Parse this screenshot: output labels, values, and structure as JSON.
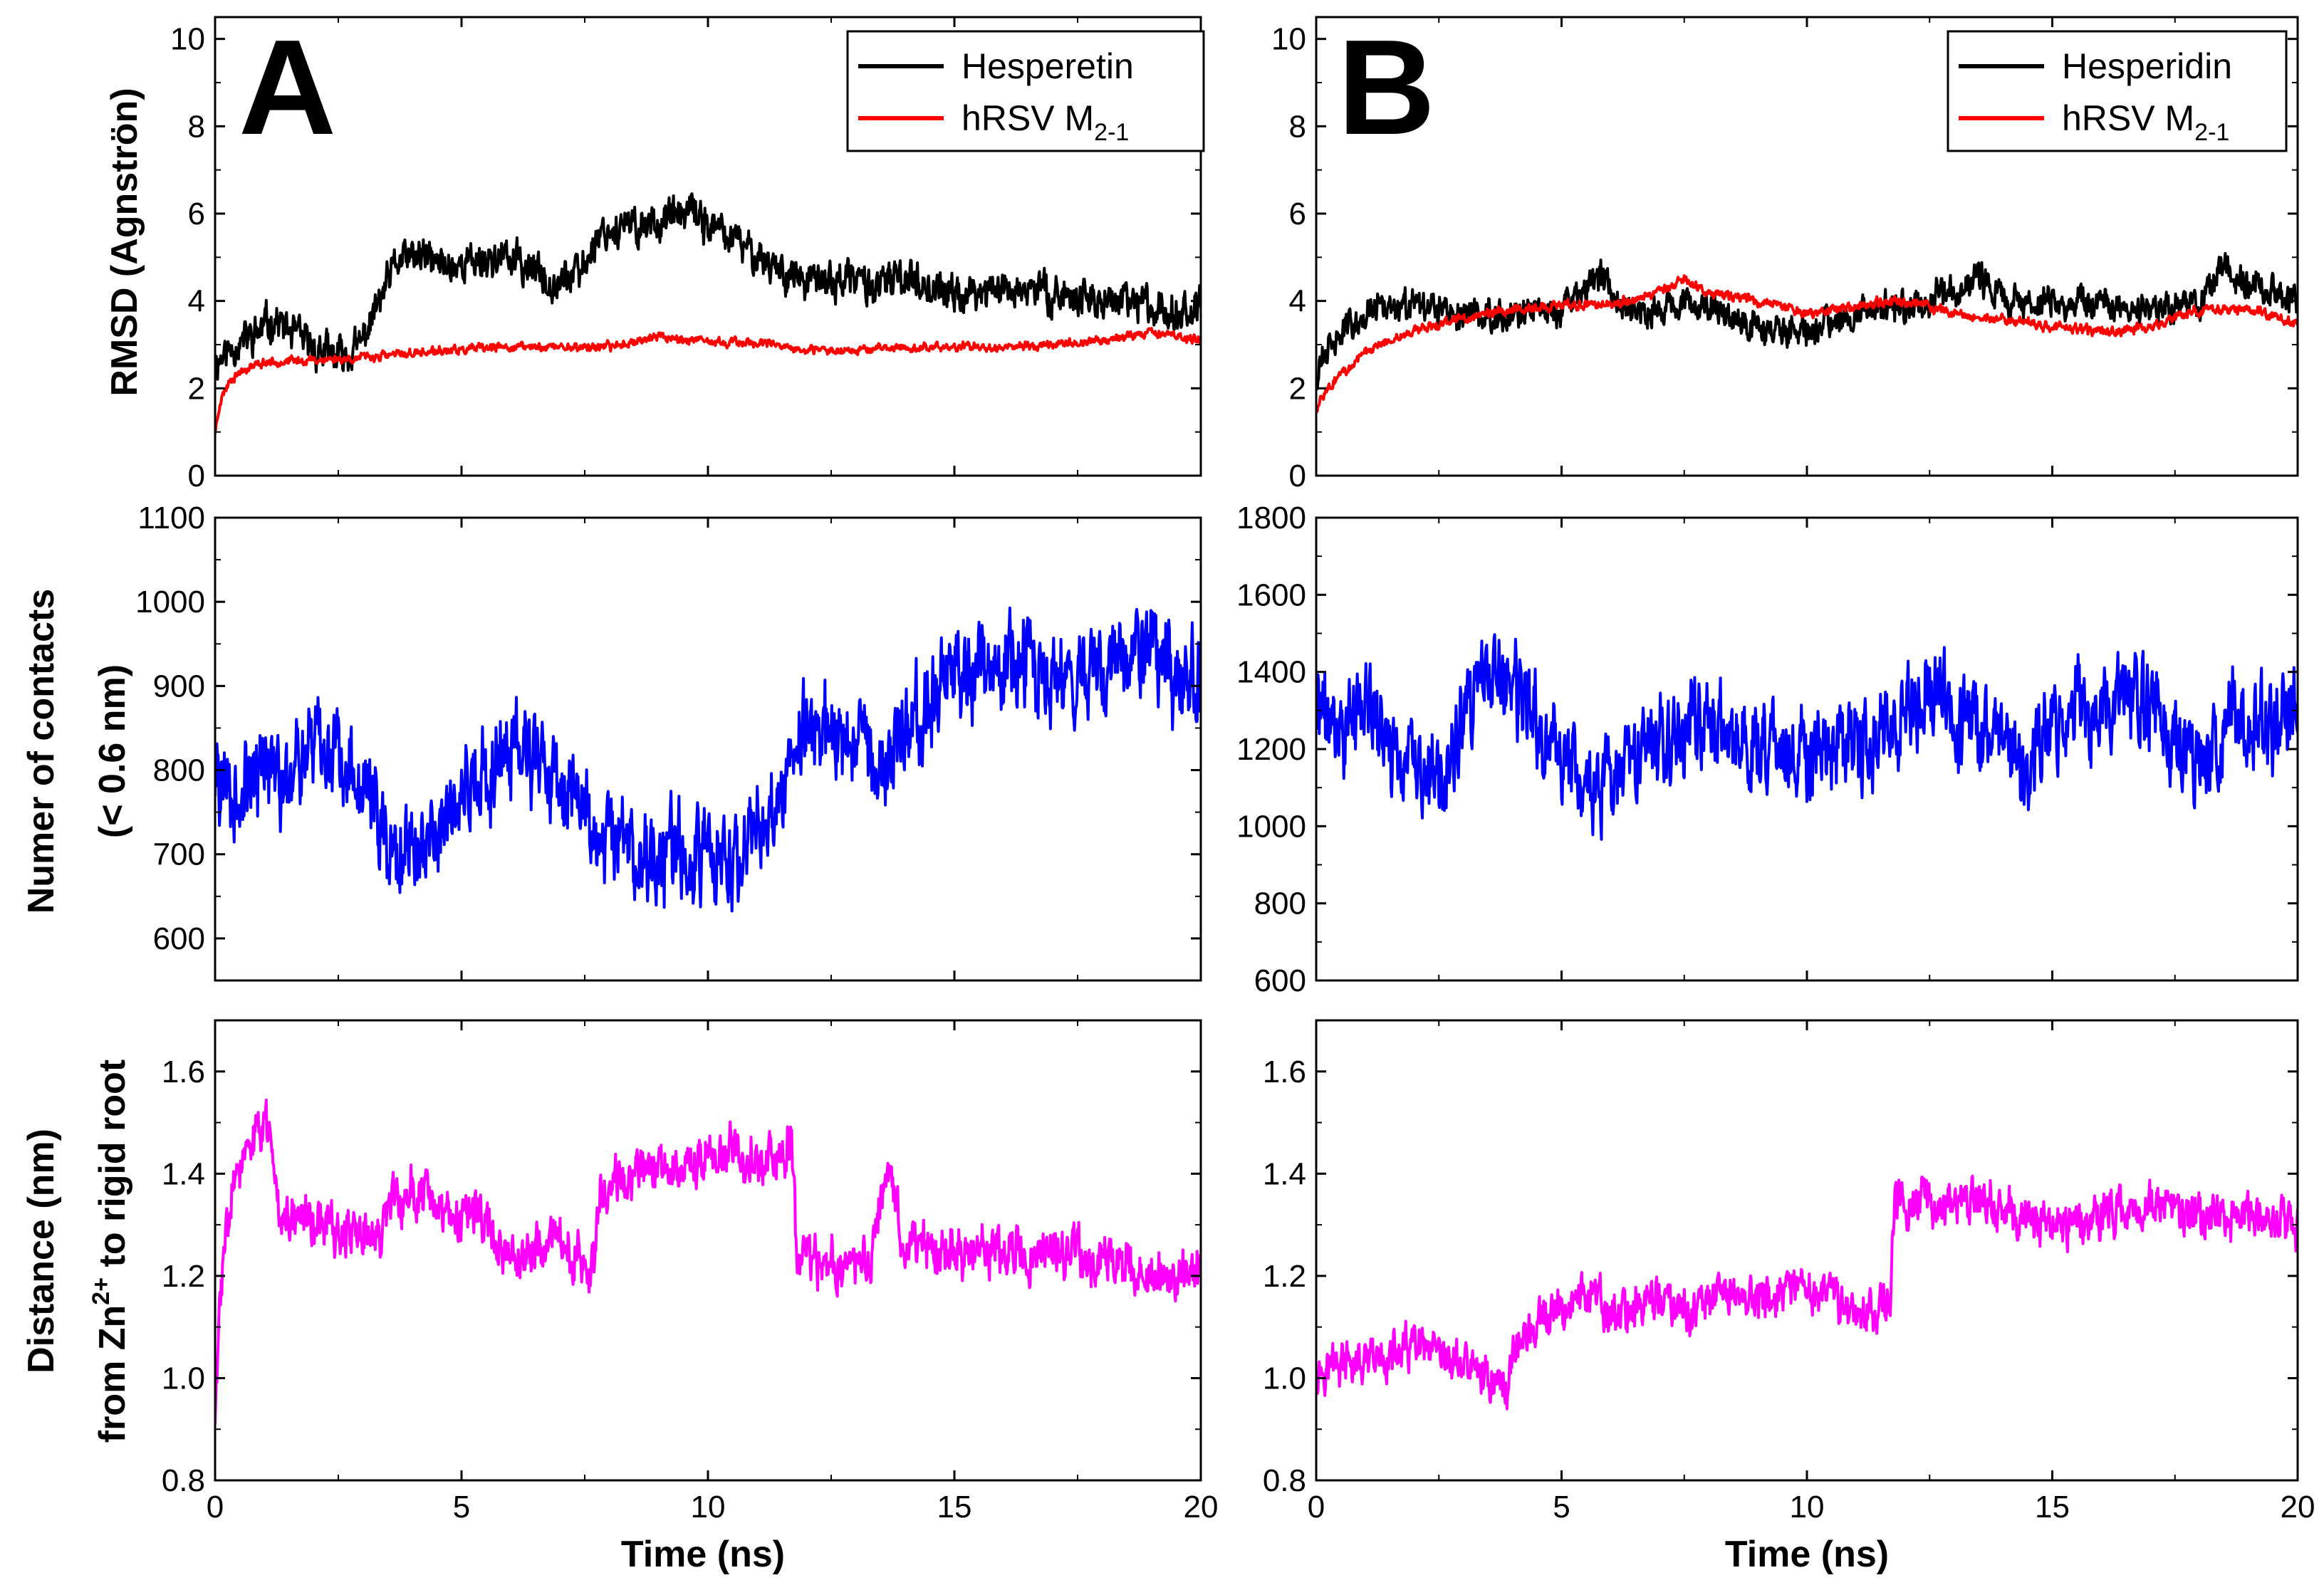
{
  "panel_labels": {
    "A": "A",
    "B": "B"
  },
  "ylabels": {
    "rmsd": "RMSD (Agnströn)",
    "contacts_line1": "Numer of contacts",
    "contacts_line2": "(< 0.6 nm)",
    "distance_line1": "Distance (nm)",
    "distance_line2_pre": "from Zn",
    "distance_line2_sup": "2+",
    "distance_line2_post": " to rigid root"
  },
  "xlabel": "Time (ns)",
  "legend": {
    "A": {
      "ligand": "Hesperetin",
      "protein_base": "hRSV M",
      "protein_sub": "2-1"
    },
    "B": {
      "ligand": "Hesperidin",
      "protein_base": "hRSV M",
      "protein_sub": "2-1"
    }
  },
  "colors": {
    "ligand": "#000000",
    "protein": "#ff0000",
    "contacts": "#0000ff",
    "distance": "#ff00ff"
  },
  "chart_data": [
    {
      "id": "A-rmsd",
      "type": "line",
      "panel": "A",
      "row": 0,
      "title": "",
      "xlabel": "",
      "ylabel": "RMSD (Agnströn)",
      "xlim": [
        0,
        20
      ],
      "ylim": [
        0,
        10.5
      ],
      "xticks": [
        0,
        5,
        10,
        15,
        20
      ],
      "yticks": [
        0,
        2,
        4,
        6,
        8,
        10
      ],
      "legend_position": "top-right",
      "series": [
        {
          "name": "Hesperetin",
          "color": "#000000",
          "noise": 0.35,
          "seed": 11,
          "x": [
            0,
            0.4,
            0.8,
            1.2,
            1.5,
            2,
            2.5,
            2.9,
            3.3,
            3.7,
            4.2,
            4.7,
            5.2,
            5.8,
            6.3,
            6.8,
            7.4,
            7.8,
            8.5,
            9.2,
            9.7,
            10.2,
            10.8,
            11.4,
            12,
            13,
            13.5,
            14,
            15,
            16,
            17,
            18,
            19,
            20
          ],
          "y": [
            2.6,
            3.0,
            3.2,
            3.6,
            3.3,
            2.9,
            2.7,
            2.9,
            3.9,
            4.9,
            5.0,
            4.8,
            4.9,
            5.0,
            4.8,
            4.5,
            4.6,
            5.6,
            5.7,
            5.9,
            6.0,
            5.6,
            5.2,
            4.8,
            4.4,
            4.5,
            4.3,
            4.6,
            4.1,
            4.3,
            4.2,
            4.0,
            3.9,
            3.8
          ]
        },
        {
          "name": "hRSV M2-1",
          "color": "#ff0000",
          "noise": 0.08,
          "seed": 23,
          "x": [
            0,
            0.1,
            0.3,
            0.6,
            1,
            2,
            3,
            4,
            6,
            8,
            9,
            10,
            11,
            12,
            13,
            15,
            16,
            17,
            18,
            19,
            20
          ],
          "y": [
            1.0,
            1.7,
            2.2,
            2.45,
            2.6,
            2.65,
            2.7,
            2.8,
            2.95,
            2.95,
            3.2,
            3.05,
            3.05,
            2.85,
            2.9,
            2.95,
            2.95,
            3.0,
            3.1,
            3.3,
            3.1
          ]
        }
      ]
    },
    {
      "id": "B-rmsd",
      "type": "line",
      "panel": "B",
      "row": 0,
      "title": "",
      "xlabel": "",
      "ylabel": "",
      "xlim": [
        0,
        20
      ],
      "ylim": [
        0,
        10.5
      ],
      "xticks": [
        0,
        5,
        10,
        15,
        20
      ],
      "yticks": [
        0,
        2,
        4,
        6,
        8,
        10
      ],
      "legend_position": "top-right",
      "series": [
        {
          "name": "Hesperidin",
          "color": "#000000",
          "noise": 0.3,
          "seed": 31,
          "x": [
            0,
            0.3,
            0.8,
            1.5,
            2,
            3,
            4,
            5,
            5.8,
            6.3,
            7,
            8,
            9,
            10,
            11,
            12,
            13,
            13.5,
            14,
            15,
            16,
            17,
            18,
            18.5,
            19,
            20
          ],
          "y": [
            2.3,
            3.0,
            3.6,
            3.9,
            3.8,
            3.7,
            3.7,
            3.8,
            4.6,
            3.9,
            3.8,
            3.9,
            3.4,
            3.3,
            3.8,
            3.8,
            4.2,
            4.6,
            4.0,
            4.0,
            3.9,
            3.8,
            4.0,
            4.7,
            4.4,
            4.0
          ]
        },
        {
          "name": "hRSV M2-1",
          "color": "#ff0000",
          "noise": 0.09,
          "seed": 43,
          "x": [
            0,
            0.1,
            0.3,
            0.6,
            1,
            1.5,
            2,
            3,
            4,
            5,
            6,
            7,
            7.5,
            8,
            9,
            10,
            11,
            12,
            13,
            14,
            15,
            16,
            17,
            18,
            19,
            20
          ],
          "y": [
            1.5,
            1.8,
            2.1,
            2.4,
            2.8,
            3.1,
            3.3,
            3.6,
            3.8,
            3.9,
            3.9,
            4.2,
            4.5,
            4.2,
            4.0,
            3.7,
            3.9,
            4.0,
            3.7,
            3.6,
            3.4,
            3.3,
            3.4,
            3.8,
            3.8,
            3.5
          ]
        }
      ]
    },
    {
      "id": "A-contacts",
      "type": "line",
      "panel": "A",
      "row": 1,
      "title": "",
      "xlabel": "",
      "ylabel": "Numer of contacts (< 0.6 nm)",
      "xlim": [
        0,
        20
      ],
      "ylim": [
        550,
        1100
      ],
      "xticks": [
        0,
        5,
        10,
        15,
        20
      ],
      "yticks": [
        600,
        700,
        800,
        900,
        1000,
        1100
      ],
      "series": [
        {
          "name": "contacts",
          "color": "#0000ff",
          "noise": 45,
          "seed": 57,
          "x": [
            0,
            0.5,
            1,
            1.5,
            2,
            2.5,
            3,
            3.5,
            4,
            4.5,
            5,
            5.5,
            6,
            6.5,
            7,
            7.5,
            8,
            8.5,
            9,
            9.5,
            10,
            10.5,
            11,
            11.5,
            11.8,
            12.5,
            13,
            13.5,
            14,
            14.5,
            15,
            15.5,
            16,
            17,
            18,
            19,
            19.5,
            20
          ],
          "y": [
            790,
            770,
            800,
            780,
            820,
            830,
            780,
            720,
            700,
            740,
            770,
            800,
            840,
            810,
            790,
            760,
            720,
            700,
            690,
            710,
            700,
            680,
            720,
            760,
            840,
            840,
            830,
            810,
            850,
            880,
            920,
            920,
            930,
            920,
            910,
            940,
            920,
            900
          ]
        }
      ]
    },
    {
      "id": "B-contacts",
      "type": "line",
      "panel": "B",
      "row": 1,
      "title": "",
      "xlabel": "",
      "ylabel": "",
      "xlim": [
        0,
        20
      ],
      "ylim": [
        600,
        1800
      ],
      "xticks": [
        0,
        5,
        10,
        15,
        20
      ],
      "yticks": [
        600,
        800,
        1000,
        1200,
        1400,
        1600,
        1800
      ],
      "series": [
        {
          "name": "contacts",
          "color": "#0000ff",
          "noise": 95,
          "seed": 71,
          "x": [
            0,
            0.5,
            1,
            1.5,
            2,
            2.5,
            3,
            3.5,
            4,
            4.5,
            5,
            5.5,
            6,
            6.5,
            7,
            7.5,
            8,
            8.5,
            9,
            9.5,
            10,
            10.5,
            11,
            11.5,
            12,
            12.5,
            13,
            13.5,
            14,
            14.5,
            15,
            15.5,
            16,
            16.5,
            17,
            17.5,
            18,
            18.5,
            19,
            19.5,
            20
          ],
          "y": [
            1300,
            1250,
            1320,
            1200,
            1150,
            1100,
            1250,
            1400,
            1350,
            1250,
            1200,
            1100,
            1100,
            1150,
            1250,
            1250,
            1300,
            1200,
            1250,
            1200,
            1150,
            1200,
            1200,
            1200,
            1300,
            1350,
            1300,
            1250,
            1200,
            1150,
            1250,
            1300,
            1300,
            1350,
            1300,
            1250,
            1150,
            1250,
            1300,
            1250,
            1300
          ]
        }
      ]
    },
    {
      "id": "A-distance",
      "type": "line",
      "panel": "A",
      "row": 2,
      "title": "",
      "xlabel": "Time (ns)",
      "ylabel": "Distance (nm) from Zn2+ to rigid root",
      "xlim": [
        0,
        20
      ],
      "ylim": [
        0.8,
        1.7
      ],
      "xticks": [
        0,
        5,
        10,
        15,
        20
      ],
      "yticks": [
        0.8,
        1.0,
        1.2,
        1.4,
        1.6
      ],
      "series": [
        {
          "name": "distance",
          "color": "#ff00ff",
          "noise": 0.04,
          "seed": 83,
          "x": [
            0,
            0.1,
            0.3,
            0.6,
            0.9,
            1.1,
            1.3,
            1.8,
            2.3,
            2.8,
            3.3,
            3.8,
            4.3,
            4.8,
            5.3,
            5.8,
            6.3,
            6.8,
            7.3,
            7.7,
            7.8,
            8.5,
            9.5,
            10.5,
            11,
            11.5,
            11.7,
            11.8,
            12.3,
            12.8,
            13.3,
            13.6,
            14,
            14.5,
            15,
            16,
            17,
            18,
            19,
            20
          ],
          "y": [
            0.92,
            1.15,
            1.38,
            1.42,
            1.48,
            1.5,
            1.33,
            1.32,
            1.3,
            1.27,
            1.29,
            1.35,
            1.38,
            1.28,
            1.33,
            1.25,
            1.24,
            1.26,
            1.25,
            1.22,
            1.38,
            1.4,
            1.43,
            1.44,
            1.42,
            1.43,
            1.48,
            1.24,
            1.22,
            1.23,
            1.22,
            1.42,
            1.26,
            1.25,
            1.26,
            1.25,
            1.24,
            1.23,
            1.2,
            1.21
          ]
        }
      ]
    },
    {
      "id": "B-distance",
      "type": "line",
      "panel": "B",
      "row": 2,
      "title": "",
      "xlabel": "Time (ns)",
      "ylabel": "",
      "xlim": [
        0,
        20
      ],
      "ylim": [
        0.8,
        1.7
      ],
      "xticks": [
        0,
        5,
        10,
        15,
        20
      ],
      "yticks": [
        0.8,
        1.0,
        1.2,
        1.4,
        1.6
      ],
      "series": [
        {
          "name": "distance",
          "color": "#ff00ff",
          "noise": 0.035,
          "seed": 97,
          "x": [
            0,
            0.5,
            1,
            1.5,
            2,
            2.5,
            3,
            3.5,
            3.9,
            4,
            4.5,
            5,
            5.5,
            6,
            6.5,
            7,
            7.5,
            8,
            8.5,
            9,
            9.5,
            10,
            10.5,
            11,
            11.5,
            11.7,
            11.8,
            12.5,
            13,
            13.5,
            14,
            15,
            16,
            17,
            18,
            19,
            20
          ],
          "y": [
            1.02,
            1.03,
            1.02,
            1.04,
            1.06,
            1.03,
            1.03,
            1.0,
            0.98,
            1.06,
            1.1,
            1.13,
            1.17,
            1.12,
            1.14,
            1.16,
            1.12,
            1.15,
            1.17,
            1.15,
            1.16,
            1.17,
            1.16,
            1.13,
            1.14,
            1.16,
            1.34,
            1.35,
            1.33,
            1.36,
            1.32,
            1.3,
            1.32,
            1.34,
            1.31,
            1.32,
            1.3
          ]
        }
      ]
    }
  ]
}
